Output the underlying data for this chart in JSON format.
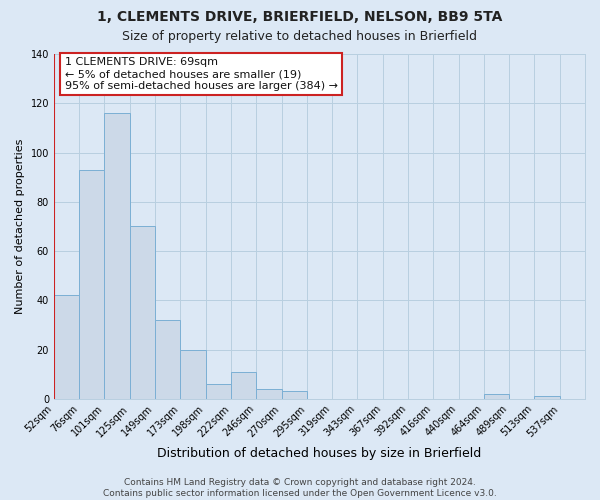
{
  "title": "1, CLEMENTS DRIVE, BRIERFIELD, NELSON, BB9 5TA",
  "subtitle": "Size of property relative to detached houses in Brierfield",
  "xlabel": "Distribution of detached houses by size in Brierfield",
  "ylabel": "Number of detached properties",
  "bar_labels": [
    "52sqm",
    "76sqm",
    "101sqm",
    "125sqm",
    "149sqm",
    "173sqm",
    "198sqm",
    "222sqm",
    "246sqm",
    "270sqm",
    "295sqm",
    "319sqm",
    "343sqm",
    "367sqm",
    "392sqm",
    "416sqm",
    "440sqm",
    "464sqm",
    "489sqm",
    "513sqm",
    "537sqm"
  ],
  "bar_values": [
    42,
    93,
    116,
    70,
    32,
    20,
    6,
    11,
    4,
    3,
    0,
    0,
    0,
    0,
    0,
    0,
    0,
    2,
    0,
    1,
    0
  ],
  "bar_color": "#ccd9e8",
  "bar_edge_color": "#7bafd4",
  "highlight_color": "#cc2222",
  "annotation_box_text": "1 CLEMENTS DRIVE: 69sqm\n← 5% of detached houses are smaller (19)\n95% of semi-detached houses are larger (384) →",
  "ylim": [
    0,
    140
  ],
  "yticks": [
    0,
    20,
    40,
    60,
    80,
    100,
    120,
    140
  ],
  "footer_text": "Contains HM Land Registry data © Crown copyright and database right 2024.\nContains public sector information licensed under the Open Government Licence v3.0.",
  "background_color": "#dce8f5",
  "plot_bg_color": "#dce8f5",
  "grid_color": "#b8cfe0",
  "title_fontsize": 10,
  "subtitle_fontsize": 9,
  "xlabel_fontsize": 9,
  "ylabel_fontsize": 8,
  "tick_fontsize": 7,
  "annotation_fontsize": 8,
  "footer_fontsize": 6.5
}
